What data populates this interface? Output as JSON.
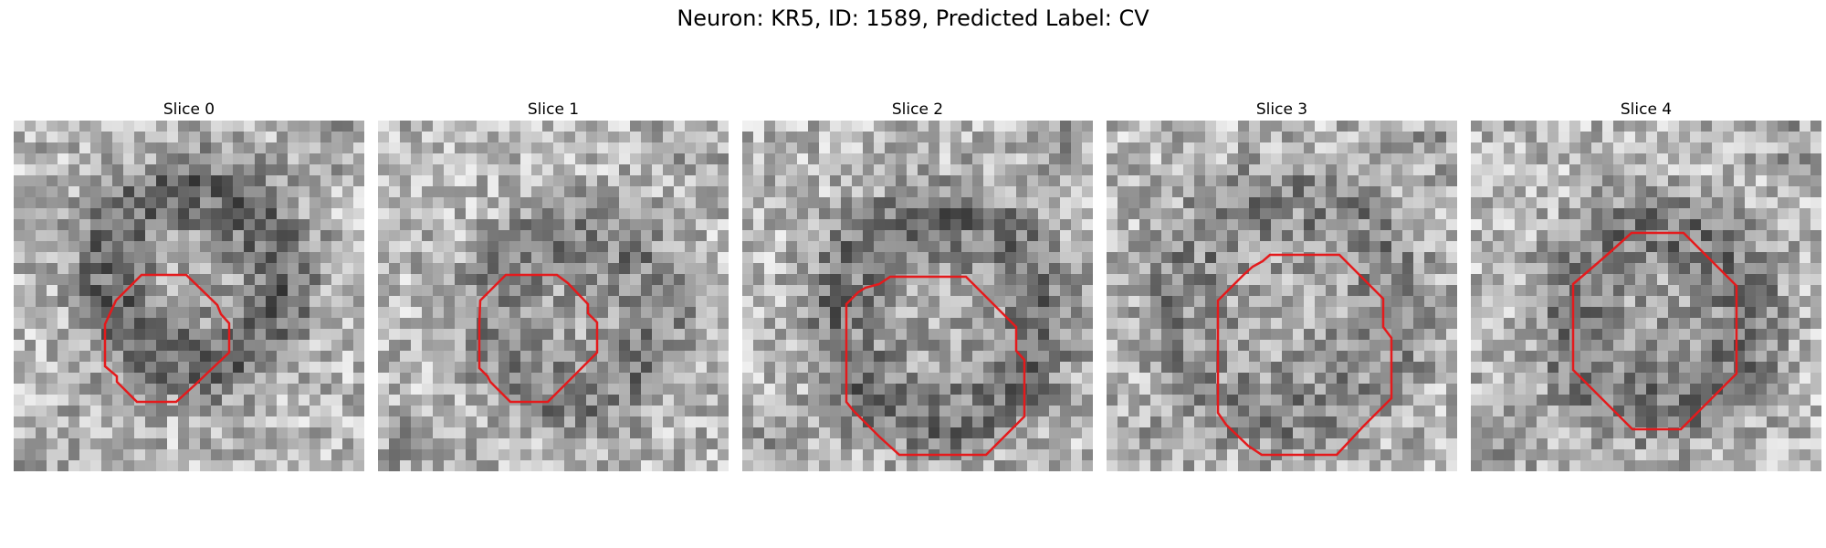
{
  "figure": {
    "title": "Neuron: KR5, ID: 1589, Predicted Label: CV",
    "contour_color": "#e41a1c",
    "colormap": "grayscale",
    "panels": [
      {
        "title": "Slice 0",
        "dark_center": [
          0.5,
          0.43
        ],
        "dark_radius": 0.26,
        "contrast": 0.55
      },
      {
        "title": "Slice 1",
        "dark_center": [
          0.55,
          0.55
        ],
        "dark_radius": 0.24,
        "contrast": 0.4
      },
      {
        "title": "Slice 2",
        "dark_center": [
          0.55,
          0.55
        ],
        "dark_radius": 0.3,
        "contrast": 0.5
      },
      {
        "title": "Slice 3",
        "dark_center": [
          0.5,
          0.52
        ],
        "dark_radius": 0.33,
        "contrast": 0.35
      },
      {
        "title": "Slice 4",
        "dark_center": [
          0.52,
          0.55
        ],
        "dark_radius": 0.27,
        "contrast": 0.45
      }
    ]
  }
}
